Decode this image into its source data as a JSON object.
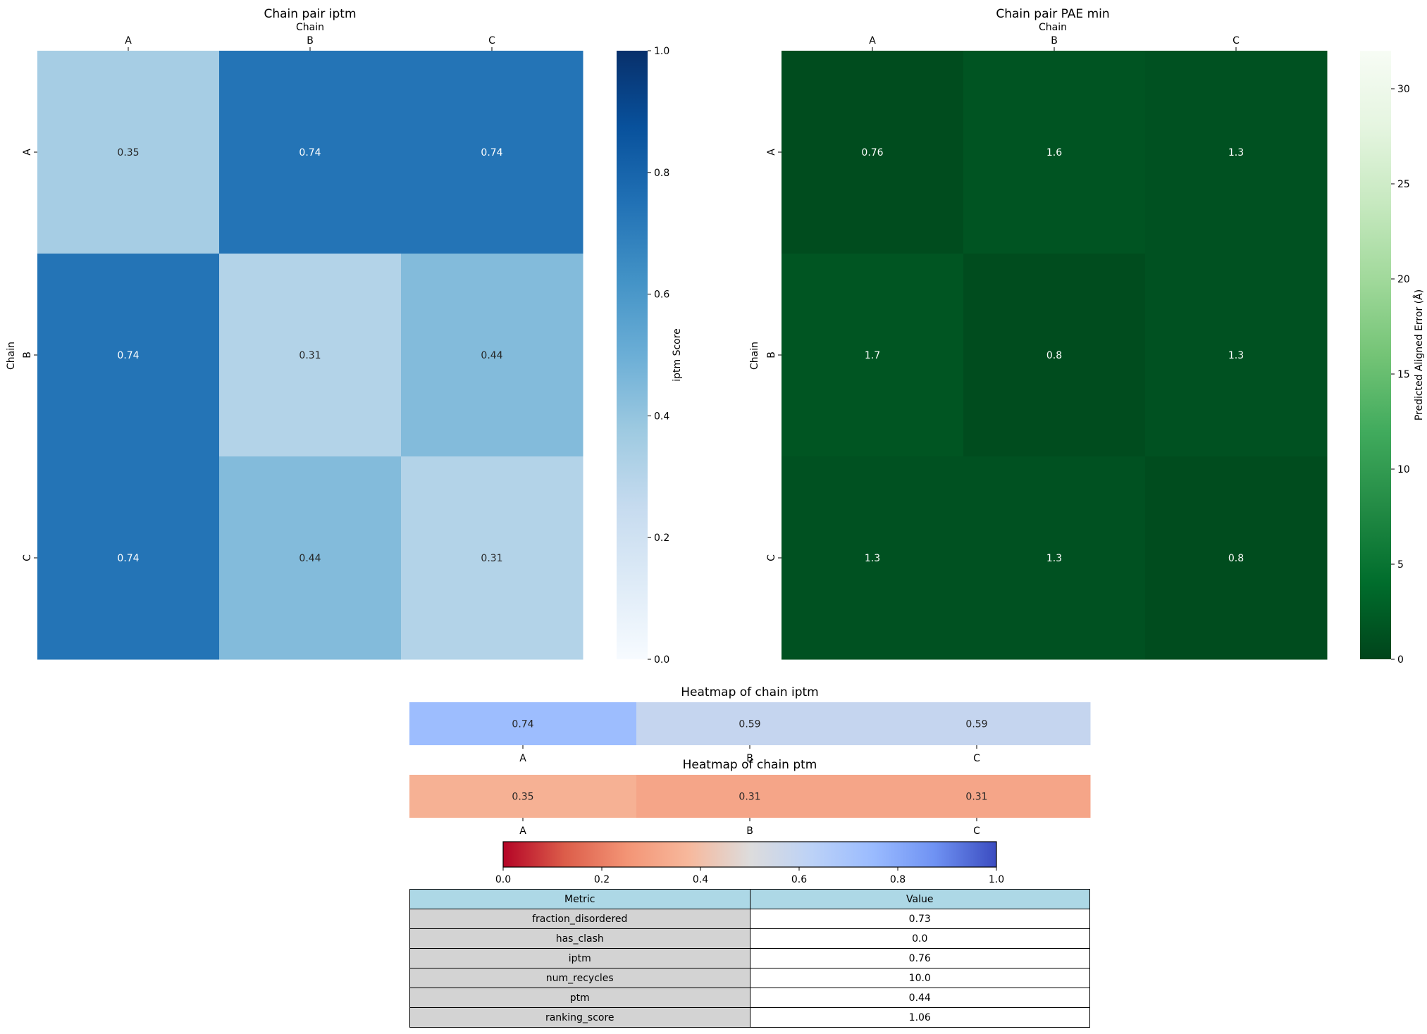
{
  "chart_data": [
    {
      "type": "heatmap",
      "title": "Chain pair iptm",
      "xlabel": "Chain",
      "ylabel": "Chain",
      "x_categories": [
        "A",
        "B",
        "C"
      ],
      "y_categories": [
        "A",
        "B",
        "C"
      ],
      "values": [
        [
          0.35,
          0.74,
          0.74
        ],
        [
          0.74,
          0.31,
          0.44
        ],
        [
          0.74,
          0.44,
          0.31
        ]
      ],
      "cell_labels": [
        [
          "0.35",
          "0.74",
          "0.74"
        ],
        [
          "0.74",
          "0.31",
          "0.44"
        ],
        [
          "0.74",
          "0.44",
          "0.31"
        ]
      ],
      "colormap": "Blues",
      "colorbar": {
        "label": "iptm Score",
        "range": [
          0,
          1
        ],
        "ticks": [
          "0.0",
          "0.2",
          "0.4",
          "0.6",
          "0.8",
          "1.0"
        ]
      }
    },
    {
      "type": "heatmap",
      "title": "Chain pair PAE min",
      "xlabel": "Chain",
      "ylabel": "Chain",
      "x_categories": [
        "A",
        "B",
        "C"
      ],
      "y_categories": [
        "A",
        "B",
        "C"
      ],
      "values": [
        [
          0.76,
          1.6,
          1.3
        ],
        [
          1.7,
          0.8,
          1.3
        ],
        [
          1.3,
          1.3,
          0.8
        ]
      ],
      "cell_labels": [
        [
          "0.76",
          "1.6",
          "1.3"
        ],
        [
          "1.7",
          "0.8",
          "1.3"
        ],
        [
          "1.3",
          "1.3",
          "0.8"
        ]
      ],
      "colormap": "Greens_r",
      "colorbar": {
        "label": "Predicted Aligned Error (Å)",
        "range": [
          0,
          32
        ],
        "ticks": [
          "0",
          "5",
          "10",
          "15",
          "20",
          "25",
          "30"
        ]
      }
    },
    {
      "type": "heatmap",
      "title": "Heatmap of chain iptm",
      "x_categories": [
        "A",
        "B",
        "C"
      ],
      "values": [
        0.74,
        0.59,
        0.59
      ],
      "cell_labels": [
        "0.74",
        "0.59",
        "0.59"
      ],
      "colormap": "coolwarm_r"
    },
    {
      "type": "heatmap",
      "title": "Heatmap of chain ptm",
      "x_categories": [
        "A",
        "B",
        "C"
      ],
      "values": [
        0.35,
        0.31,
        0.31
      ],
      "cell_labels": [
        "0.35",
        "0.31",
        "0.31"
      ],
      "colormap": "coolwarm_r",
      "colorbar": {
        "range": [
          0,
          1
        ],
        "ticks": [
          "0.0",
          "0.2",
          "0.4",
          "0.6",
          "0.8",
          "1.0"
        ]
      }
    },
    {
      "type": "table",
      "columns": [
        "Metric",
        "Value"
      ],
      "rows": [
        [
          "fraction_disordered",
          "0.73"
        ],
        [
          "has_clash",
          "0.0"
        ],
        [
          "iptm",
          "0.76"
        ],
        [
          "num_recycles",
          "10.0"
        ],
        [
          "ptm",
          "0.44"
        ],
        [
          "ranking_score",
          "1.06"
        ]
      ]
    }
  ]
}
